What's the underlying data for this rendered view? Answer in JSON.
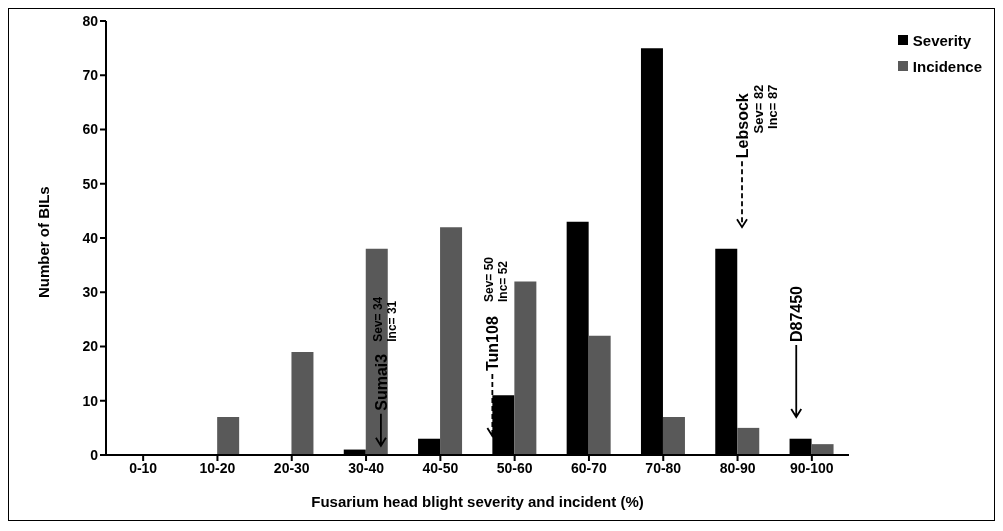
{
  "chart_data": {
    "type": "bar",
    "xlabel": "Fusarium head blight severity and incident (%)",
    "ylabel": "Number of BILs",
    "categories": [
      "0-10",
      "10-20",
      "20-30",
      "30-40",
      "40-50",
      "50-60",
      "60-70",
      "70-80",
      "80-90",
      "90-100"
    ],
    "series": [
      {
        "name": "Severity",
        "color": "#000000",
        "values": [
          0,
          0,
          0,
          1,
          3,
          11,
          43,
          75,
          38,
          3
        ]
      },
      {
        "name": "Incidence",
        "color": "#595959",
        "values": [
          0,
          7,
          19,
          38,
          42,
          32,
          22,
          7,
          5,
          2
        ]
      }
    ],
    "ylim": [
      0,
      80
    ],
    "yticks": [
      0,
      10,
      20,
      30,
      40,
      50,
      60,
      70,
      80
    ],
    "legend": "top right",
    "annotations": [
      "Sumai3",
      "Sev= 34",
      "Inc= 31",
      "Tun108",
      "Sev= 50",
      "Inc= 52",
      "Lebsock",
      "Sev= 82",
      "Inc= 87",
      "D87450"
    ]
  }
}
